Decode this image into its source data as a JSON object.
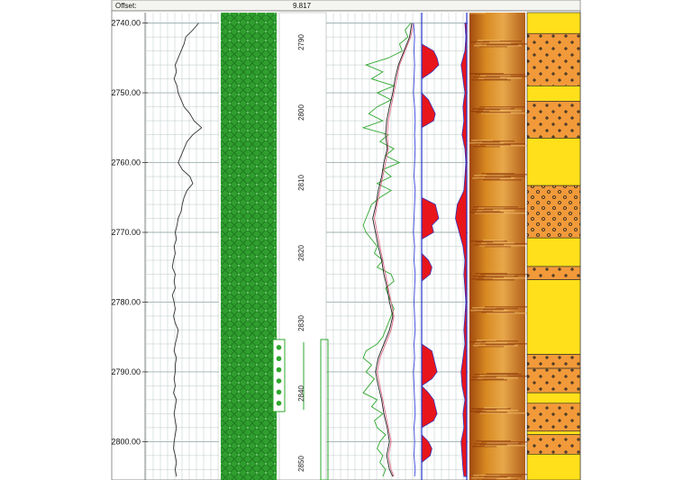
{
  "header": {
    "offset_label": "Offset:",
    "offset_value": "9.817"
  },
  "chart_data": {
    "type": "line",
    "title": "",
    "ylabel": "",
    "depth_axis": {
      "ylim": [
        2738.5,
        2805.5
      ],
      "ticks": [
        2740,
        2750,
        2760,
        2770,
        2780,
        2790,
        2800
      ],
      "tick_labels": [
        "2740.00",
        "2750.00",
        "2760.00",
        "2770.00",
        "2780.00",
        "2790.00",
        "2800.00"
      ]
    },
    "secondary_depth_axis": {
      "ticks": [
        2790,
        2800,
        2810,
        2820,
        2830,
        2840,
        2850
      ],
      "tick_labels": [
        "2790",
        "2800",
        "2810",
        "2820",
        "2830",
        "2840",
        "2850"
      ]
    },
    "colors": {
      "grid": "#9fb0b0",
      "green_track": "#2f9e2f",
      "image_log": "#d48a1e",
      "fill_red": "#e8151a",
      "fill_blue": "#2233cc",
      "lith_orange": "#f29a3a",
      "lith_yellow": "#ffe01a",
      "curve_green": "#2ea82e",
      "curve_pink": "#e06a86",
      "curve_black": "#222222",
      "curve_blue": "#3344dd"
    },
    "series": [
      {
        "name": "",
        "track": 1,
        "depth": [
          2740,
          2741,
          2742,
          2743,
          2744,
          2745,
          2746,
          2747,
          2748,
          2749,
          2750,
          2751,
          2752,
          2753,
          2754,
          2755,
          2756,
          2757,
          2758,
          2759,
          2760,
          2761,
          2762,
          2763,
          2764,
          2765,
          2766,
          2767,
          2768,
          2769,
          2770,
          2771,
          2772,
          2773,
          2774,
          2775,
          2776,
          2777,
          2778,
          2779,
          2780,
          2781,
          2782,
          2783,
          2784,
          2785,
          2786,
          2787,
          2788,
          2789,
          2790,
          2791,
          2792,
          2793,
          2794,
          2795,
          2796,
          2797,
          2798,
          2799,
          2800,
          2801,
          2802,
          2803,
          2804,
          2805
        ],
        "values": [
          0.7,
          0.6,
          0.48,
          0.45,
          0.4,
          0.35,
          0.3,
          0.32,
          0.28,
          0.33,
          0.35,
          0.4,
          0.45,
          0.55,
          0.62,
          0.75,
          0.6,
          0.5,
          0.45,
          0.4,
          0.35,
          0.42,
          0.55,
          0.6,
          0.5,
          0.45,
          0.42,
          0.4,
          0.35,
          0.33,
          0.3,
          0.32,
          0.28,
          0.3,
          0.27,
          0.25,
          0.3,
          0.28,
          0.3,
          0.25,
          0.28,
          0.3,
          0.27,
          0.3,
          0.35,
          0.33,
          0.3,
          0.28,
          0.32,
          0.3,
          0.3,
          0.28,
          0.3,
          0.27,
          0.32,
          0.3,
          0.28,
          0.3,
          0.32,
          0.3,
          0.28,
          0.27,
          0.3,
          0.32,
          0.3,
          0.32
        ]
      },
      {
        "name": "",
        "track": 5,
        "curve": "green",
        "depth": [
          2740,
          2741,
          2742,
          2743,
          2744,
          2745,
          2746,
          2747,
          2748,
          2749,
          2750,
          2751,
          2752,
          2753,
          2754,
          2755,
          2756,
          2757,
          2758,
          2759,
          2760,
          2761,
          2762,
          2763,
          2764,
          2765,
          2766,
          2767,
          2768,
          2769,
          2770,
          2771,
          2772,
          2773,
          2774,
          2775,
          2776,
          2777,
          2778,
          2779,
          2780,
          2781,
          2782,
          2783,
          2784,
          2785,
          2786,
          2787,
          2788,
          2789,
          2790,
          2791,
          2792,
          2793,
          2794,
          2795,
          2796,
          2797,
          2798,
          2799,
          2800,
          2801,
          2802,
          2803,
          2804,
          2805
        ],
        "values": [
          0.9,
          0.8,
          0.85,
          0.7,
          0.75,
          0.5,
          0.1,
          0.4,
          0.2,
          0.6,
          0.3,
          0.55,
          0.3,
          0.15,
          0.4,
          0.05,
          0.5,
          0.35,
          0.6,
          0.45,
          0.7,
          0.4,
          0.55,
          0.3,
          0.55,
          0.35,
          0.2,
          0.15,
          0.1,
          0.05,
          0.1,
          0.2,
          0.3,
          0.25,
          0.4,
          0.3,
          0.55,
          0.6,
          0.45,
          0.5,
          0.55,
          0.6,
          0.55,
          0.5,
          0.45,
          0.4,
          0.3,
          0.1,
          0.05,
          0.2,
          0.1,
          0.25,
          0.15,
          0.05,
          0.3,
          0.2,
          0.4,
          0.25,
          0.3,
          0.45,
          0.35,
          0.3,
          0.4,
          0.35,
          0.45,
          0.4
        ]
      },
      {
        "name": "",
        "track": 5,
        "curve": "pink",
        "depth": [
          2740,
          2742,
          2744,
          2746,
          2748,
          2750,
          2752,
          2754,
          2756,
          2758,
          2760,
          2762,
          2764,
          2766,
          2768,
          2770,
          2772,
          2774,
          2776,
          2778,
          2780,
          2782,
          2784,
          2786,
          2788,
          2790,
          2792,
          2794,
          2796,
          2798,
          2800,
          2802,
          2804,
          2805
        ],
        "values": [
          0.95,
          0.9,
          0.8,
          0.7,
          0.65,
          0.6,
          0.55,
          0.5,
          0.48,
          0.5,
          0.45,
          0.4,
          0.35,
          0.3,
          0.25,
          0.3,
          0.35,
          0.4,
          0.45,
          0.5,
          0.55,
          0.6,
          0.55,
          0.45,
          0.35,
          0.3,
          0.35,
          0.4,
          0.45,
          0.5,
          0.55,
          0.5,
          0.55,
          0.6
        ]
      },
      {
        "name": "",
        "track": 5,
        "curve": "black",
        "depth": [
          2740,
          2742,
          2744,
          2746,
          2748,
          2750,
          2752,
          2754,
          2756,
          2758,
          2760,
          2762,
          2764,
          2766,
          2768,
          2770,
          2772,
          2774,
          2776,
          2778,
          2780,
          2782,
          2784,
          2786,
          2788,
          2790,
          2792,
          2794,
          2796,
          2798,
          2800,
          2802,
          2804,
          2805
        ],
        "values": [
          0.92,
          0.88,
          0.78,
          0.68,
          0.62,
          0.58,
          0.52,
          0.47,
          0.45,
          0.48,
          0.42,
          0.38,
          0.32,
          0.28,
          0.22,
          0.27,
          0.32,
          0.38,
          0.42,
          0.48,
          0.52,
          0.58,
          0.52,
          0.42,
          0.32,
          0.27,
          0.32,
          0.38,
          0.42,
          0.48,
          0.52,
          0.47,
          0.52,
          0.58
        ]
      },
      {
        "name": "",
        "track": 5,
        "curve": "blue",
        "depth": [
          2740,
          2742,
          2744,
          2746,
          2748,
          2750,
          2752,
          2754,
          2756,
          2758,
          2760,
          2762,
          2764,
          2766,
          2768,
          2770,
          2772,
          2774,
          2776,
          2778,
          2780,
          2782,
          2784,
          2786,
          2788,
          2790,
          2792,
          2794,
          2796,
          2798,
          2800,
          2802,
          2804,
          2805
        ],
        "values": [
          0.95,
          0.97,
          0.96,
          0.97,
          0.96,
          0.95,
          0.97,
          0.98,
          0.97,
          0.98,
          0.97,
          0.96,
          0.98,
          0.97,
          0.96,
          0.95,
          0.97,
          0.96,
          0.98,
          0.97,
          0.96,
          0.97,
          0.98,
          0.96,
          0.97,
          0.95,
          0.96,
          0.97,
          0.98,
          0.96,
          0.97,
          0.96,
          0.98,
          0.97
        ]
      },
      {
        "name": "",
        "track": 6,
        "curve": "red-fill",
        "depth": [
          2740,
          2741,
          2742,
          2743,
          2744,
          2745,
          2746,
          2747,
          2748,
          2749,
          2750,
          2751,
          2752,
          2753,
          2754,
          2755,
          2756,
          2757,
          2758,
          2759,
          2760,
          2761,
          2762,
          2763,
          2764,
          2765,
          2766,
          2767,
          2768,
          2769,
          2770,
          2771,
          2772,
          2773,
          2774,
          2775,
          2776,
          2777,
          2778,
          2779,
          2780,
          2781,
          2782,
          2783,
          2784,
          2785,
          2786,
          2787,
          2788,
          2789,
          2790,
          2791,
          2792,
          2793,
          2794,
          2795,
          2796,
          2797,
          2798,
          2799,
          2800,
          2801,
          2802,
          2803,
          2804,
          2805
        ],
        "values": [
          0,
          0,
          0,
          0,
          0.35,
          0.45,
          0.5,
          0.3,
          0,
          0,
          0,
          0.2,
          0.3,
          0.4,
          0.35,
          0,
          0,
          0,
          0,
          0,
          0,
          0,
          0,
          0,
          0,
          0,
          0.4,
          0.45,
          0.5,
          0.3,
          0.35,
          0,
          0,
          0,
          0.2,
          0.3,
          0.25,
          0,
          0,
          0,
          0,
          0,
          0,
          0,
          0,
          0,
          0,
          0.3,
          0.35,
          0.4,
          0.45,
          0.3,
          0,
          0.2,
          0.35,
          0.4,
          0.45,
          0.35,
          0,
          0,
          0.2,
          0.3,
          0.25,
          0,
          0,
          0
        ]
      },
      {
        "name": "",
        "track": 7,
        "curve": "red-blue-fill",
        "depth": [
          2740,
          2742,
          2744,
          2746,
          2748,
          2750,
          2752,
          2754,
          2756,
          2758,
          2760,
          2762,
          2764,
          2766,
          2768,
          2770,
          2772,
          2774,
          2776,
          2778,
          2780,
          2782,
          2784,
          2786,
          2788,
          2790,
          2792,
          2794,
          2796,
          2798,
          2800,
          2802,
          2804,
          2805
        ],
        "values": [
          0.1,
          0.05,
          0.1,
          0.3,
          0.2,
          0.1,
          0.2,
          0.15,
          0.25,
          0.1,
          0.05,
          0.1,
          0.15,
          0.5,
          0.6,
          0.4,
          0.2,
          0.1,
          0.15,
          0.1,
          0.05,
          0.1,
          0.15,
          0.1,
          0.2,
          0.3,
          0.25,
          0.1,
          0.2,
          0.15,
          0.3,
          0.25,
          0.2,
          0.15
        ]
      }
    ],
    "lithology": [
      {
        "top": 2738.5,
        "base": 2741.5,
        "pattern": "sand"
      },
      {
        "top": 2741.5,
        "base": 2749.0,
        "pattern": "crosses"
      },
      {
        "top": 2749.0,
        "base": 2751.2,
        "pattern": "sand"
      },
      {
        "top": 2751.2,
        "base": 2756.5,
        "pattern": "crosses"
      },
      {
        "top": 2756.5,
        "base": 2763.3,
        "pattern": "sand"
      },
      {
        "top": 2763.3,
        "base": 2770.8,
        "pattern": "dots"
      },
      {
        "top": 2770.8,
        "base": 2774.9,
        "pattern": "sand"
      },
      {
        "top": 2774.9,
        "base": 2776.8,
        "pattern": "crosses"
      },
      {
        "top": 2776.8,
        "base": 2787.5,
        "pattern": "sand"
      },
      {
        "top": 2787.5,
        "base": 2789.5,
        "pattern": "crosses"
      },
      {
        "top": 2789.5,
        "base": 2793.0,
        "pattern": "crosses"
      },
      {
        "top": 2793.0,
        "base": 2794.5,
        "pattern": "sand"
      },
      {
        "top": 2794.5,
        "base": 2798.5,
        "pattern": "crosses"
      },
      {
        "top": 2798.5,
        "base": 2799.0,
        "pattern": "sand"
      },
      {
        "top": 2799.0,
        "base": 2801.8,
        "pattern": "crosses"
      },
      {
        "top": 2801.8,
        "base": 2805.5,
        "pattern": "sand"
      }
    ],
    "markers": {
      "core_dots_depth": [
        2786.5,
        2788.1,
        2789.7,
        2791.3,
        2792.9,
        2794.5
      ]
    }
  }
}
